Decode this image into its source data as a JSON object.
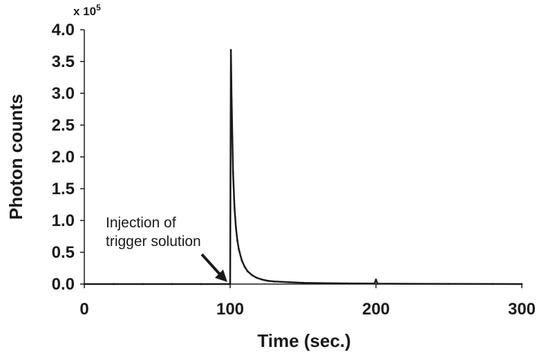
{
  "chart_data": {
    "type": "line",
    "xlabel": "Time (sec.)",
    "ylabel": "Photon counts",
    "y_multiplier": {
      "base": "x 10",
      "exponent": "5"
    },
    "xlim": [
      0,
      300
    ],
    "ylim": [
      0,
      4.0
    ],
    "x_ticks": [
      "0",
      "100",
      "200",
      "300"
    ],
    "y_ticks": [
      "0.0",
      "0.5",
      "1.0",
      "1.5",
      "2.0",
      "2.5",
      "3.0",
      "3.5",
      "4.0"
    ],
    "grid": false,
    "legend": "none",
    "series": [
      {
        "color": "#1a1a1a",
        "x": [
          0,
          20,
          40,
          60,
          80,
          99,
          100,
          100.5,
          101,
          102,
          103,
          104,
          105,
          106,
          108,
          110,
          112,
          115,
          118,
          122,
          126,
          130,
          140,
          150,
          160,
          180,
          199,
          200,
          201,
          220,
          250,
          280,
          300
        ],
        "y": [
          0,
          0,
          0,
          0,
          0,
          0,
          0,
          3.68,
          2.9,
          1.75,
          1.2,
          0.88,
          0.68,
          0.54,
          0.37,
          0.27,
          0.2,
          0.14,
          0.1,
          0.07,
          0.05,
          0.04,
          0.03,
          0.02,
          0.015,
          0.01,
          0.008,
          0.07,
          0.006,
          0.004,
          0.002,
          0.001,
          0
        ]
      }
    ],
    "annotations": [
      {
        "lines": [
          "Injection of",
          "trigger solution"
        ],
        "arrow_to": {
          "x": 99,
          "y": 0
        }
      }
    ]
  }
}
